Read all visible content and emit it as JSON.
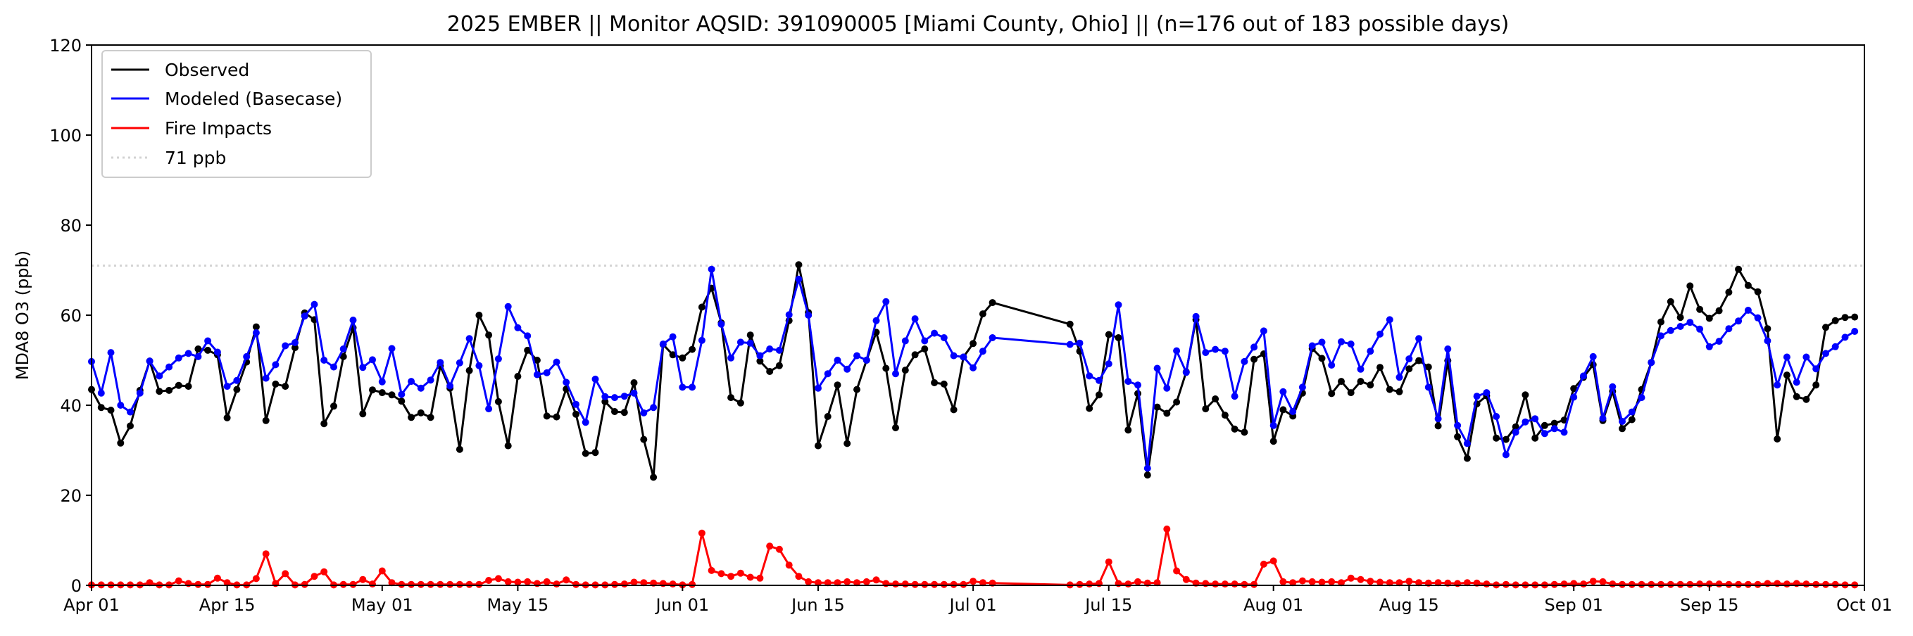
{
  "chart_data": {
    "type": "line",
    "title": "2025 EMBER || Monitor AQSID: 391090005 [Miami County, Ohio] || (n=176 out of 183 possible days)",
    "xlabel": "",
    "ylabel": "MDA8 O3 (ppb)",
    "ylim": [
      0,
      120
    ],
    "yticks": [
      "0",
      "20",
      "40",
      "60",
      "80",
      "100",
      "120"
    ],
    "xlim_dates": [
      "2025-04-01",
      "2025-10-01"
    ],
    "start_date": "2025-04-01",
    "xticks": [
      {
        "label": "Apr 01",
        "day": 0
      },
      {
        "label": "Apr 15",
        "day": 14
      },
      {
        "label": "May 01",
        "day": 30
      },
      {
        "label": "May 15",
        "day": 44
      },
      {
        "label": "Jun 01",
        "day": 61
      },
      {
        "label": "Jun 15",
        "day": 75
      },
      {
        "label": "Jul 01",
        "day": 91
      },
      {
        "label": "Jul 15",
        "day": 105
      },
      {
        "label": "Aug 01",
        "day": 122
      },
      {
        "label": "Aug 15",
        "day": 136
      },
      {
        "label": "Sep 01",
        "day": 153
      },
      {
        "label": "Sep 15",
        "day": 167
      },
      {
        "label": "Oct 01",
        "day": 183
      }
    ],
    "grid": false,
    "legend_position": "top-left",
    "threshold": {
      "value": 71,
      "label": "71 ppb",
      "color": "#d3d3d3"
    },
    "series": [
      {
        "name": "Observed",
        "color": "#000000",
        "values": [
          43.5,
          39.5,
          38.9,
          31.6,
          35.4,
          43.3,
          49.8,
          43.1,
          43.3,
          44.4,
          44.2,
          52.5,
          52.2,
          51.2,
          37.2,
          43.5,
          49.6,
          57.4,
          36.6,
          44.7,
          44.2,
          52.8,
          60.5,
          59,
          35.9,
          39.8,
          50.8,
          57.2,
          38.1,
          43.4,
          42.8,
          42.3,
          40.9,
          37.3,
          38.3,
          37.3,
          48.7,
          43.8,
          30.2,
          47.7,
          60,
          55.6,
          40.8,
          31,
          46.4,
          52.2,
          50,
          37.6,
          37.4,
          43.6,
          38,
          29.3,
          29.5,
          40.8,
          38.6,
          38.4,
          45,
          32.4,
          24,
          53.5,
          51.2,
          50.5,
          52.4,
          61.8,
          66,
          58.3,
          41.7,
          40.5,
          55.6,
          49.8,
          47.5,
          48.8,
          58.8,
          71.2,
          60.6,
          31,
          37.5,
          44.5,
          31.5,
          43.5,
          50,
          56.2,
          48.2,
          35,
          47.8,
          51.2,
          52.5,
          45,
          44.7,
          39,
          50.7,
          53.7,
          60.3,
          62.8,
          null,
          null,
          null,
          null,
          null,
          null,
          null,
          58,
          52,
          39.3,
          42.3,
          55.7,
          55,
          34.5,
          42.6,
          24.5,
          39.6,
          38.2,
          40.7,
          47.4,
          59,
          39.2,
          41.4,
          37.8,
          34.7,
          34,
          50.2,
          51.4,
          32,
          39,
          37.6,
          42.7,
          52.6,
          50.4,
          42.6,
          45.3,
          42.8,
          45.3,
          44.5,
          48.4,
          43.5,
          43,
          48.1,
          49.9,
          48.5,
          35.4,
          49.9,
          33,
          28.2,
          40.3,
          42.1,
          32.7,
          32.4,
          35.2,
          42.3,
          32.7,
          35.5,
          36,
          36.7,
          43.7,
          46.2,
          49,
          36.6,
          43.1,
          34.8,
          36.8,
          43.5,
          49.5,
          58.5,
          63,
          59.5,
          66.5,
          61.3,
          59.3,
          61,
          65.1,
          70.2,
          66.6,
          65.2,
          57,
          32.5,
          46.7,
          41.9,
          41.3,
          44.5,
          57.3,
          58.8,
          59.5,
          59.6
        ]
      },
      {
        "name": "Modeled (Basecase)",
        "color": "#0000ff",
        "values": [
          49.7,
          42.7,
          51.7,
          40,
          38.5,
          42.7,
          49.8,
          46.5,
          48.5,
          50.5,
          51.5,
          50.8,
          54.3,
          51.8,
          44.2,
          45.5,
          50.8,
          56.1,
          46,
          49,
          53.2,
          53.9,
          59.8,
          62.4,
          50,
          48.5,
          52.5,
          58.9,
          48.4,
          50.1,
          45.2,
          52.6,
          42.4,
          45.3,
          43.8,
          45.6,
          49.5,
          44.3,
          49.4,
          54.8,
          48.8,
          39.2,
          50.3,
          61.9,
          57.2,
          55.4,
          46.8,
          47.2,
          49.6,
          45.1,
          40.2,
          36.2,
          45.8,
          41.9,
          41.7,
          42.0,
          42.7,
          38.3,
          39.5,
          53.6,
          55.2,
          44,
          44,
          54.4,
          70.2,
          58,
          50.5,
          54,
          53.8,
          51,
          52.5,
          52.2,
          60.1,
          68,
          60,
          43.8,
          47,
          50,
          48,
          51,
          50,
          58.8,
          63,
          47,
          54.3,
          59.2,
          54.3,
          56,
          55,
          51,
          50.7,
          48.3,
          52,
          55,
          null,
          null,
          null,
          null,
          null,
          null,
          null,
          53.5,
          53.8,
          46.5,
          45.5,
          49.2,
          62.3,
          45.3,
          44.5,
          26,
          48.2,
          43.8,
          52.1,
          47.3,
          59.7,
          51.7,
          52.4,
          52,
          42,
          49.7,
          52.9,
          56.5,
          35.5,
          43,
          38.6,
          44,
          53.2,
          54,
          48.9,
          54.1,
          53.6,
          48,
          52,
          55.8,
          59,
          46.2,
          50.3,
          54.8,
          44,
          37,
          52.5,
          35.5,
          31.5,
          42,
          42.8,
          37.5,
          29,
          34,
          36.3,
          37,
          33.7,
          34.8,
          34,
          41.8,
          46.5,
          50.8,
          37.1,
          44.1,
          36.4,
          38.5,
          41.7,
          49.5,
          55.4,
          56.6,
          57.5,
          58.4,
          56.9,
          53,
          54.2,
          57,
          58.7,
          61.1,
          59.4,
          54.3,
          44.5,
          50.7,
          45.1,
          50.7,
          48.1,
          51.5,
          53,
          55.1,
          56.4
        ]
      },
      {
        "name": "Fire Impacts",
        "color": "#ff0000",
        "values": [
          0.1,
          0.1,
          0.1,
          0.1,
          0.1,
          0.1,
          0.6,
          0.1,
          0.1,
          1,
          0.4,
          0.2,
          0.2,
          1.6,
          0.6,
          0.1,
          0.1,
          1.5,
          7,
          0.4,
          2.6,
          0.1,
          0.2,
          2,
          3,
          0.1,
          0.2,
          0.2,
          1.3,
          0.3,
          3.2,
          0.6,
          0.2,
          0.2,
          0.2,
          0.2,
          0.2,
          0.2,
          0.2,
          0.2,
          0.2,
          1.1,
          1.5,
          0.8,
          0.7,
          0.8,
          0.4,
          0.8,
          0.3,
          1.2,
          0.2,
          0.1,
          0.1,
          0.1,
          0.2,
          0.3,
          0.7,
          0.6,
          0.5,
          0.4,
          0.3,
          0.1,
          0.2,
          11.6,
          3.3,
          2.6,
          2,
          2.7,
          1.8,
          1.6,
          8.7,
          8,
          4.5,
          2,
          0.8,
          0.6,
          0.6,
          0.6,
          0.8,
          0.6,
          0.8,
          1.2,
          0.4,
          0.3,
          0.3,
          0.2,
          0.2,
          0.2,
          0.2,
          0.2,
          0.2,
          0.9,
          0.6,
          0.5,
          null,
          null,
          null,
          null,
          null,
          null,
          null,
          0.1,
          0.2,
          0.3,
          0.4,
          5.2,
          0.4,
          0.3,
          0.8,
          0.5,
          0.6,
          12.5,
          3.2,
          1.3,
          0.5,
          0.4,
          0.3,
          0.3,
          0.3,
          0.2,
          0.2,
          4.7,
          5.4,
          0.8,
          0.6,
          1,
          0.8,
          0.7,
          0.8,
          0.6,
          1.6,
          1.3,
          0.9,
          0.7,
          0.6,
          0.6,
          0.9,
          0.6,
          0.5,
          0.6,
          0.5,
          0.4,
          0.6,
          0.5,
          0.3,
          0.1,
          0.2,
          0.1,
          0.1,
          0.1,
          0.1,
          0.2,
          0.3,
          0.4,
          0.3,
          0.9,
          0.8,
          0.3,
          0.2,
          0.2,
          0.2,
          0.2,
          0.2,
          0.2,
          0.2,
          0.2,
          0.3,
          0.3,
          0.3,
          0.2,
          0.2,
          0.2,
          0.2,
          0.4,
          0.4,
          0.3,
          0.4,
          0.3,
          0.2,
          0.2,
          0.2,
          0.1,
          0.1
        ]
      }
    ]
  }
}
